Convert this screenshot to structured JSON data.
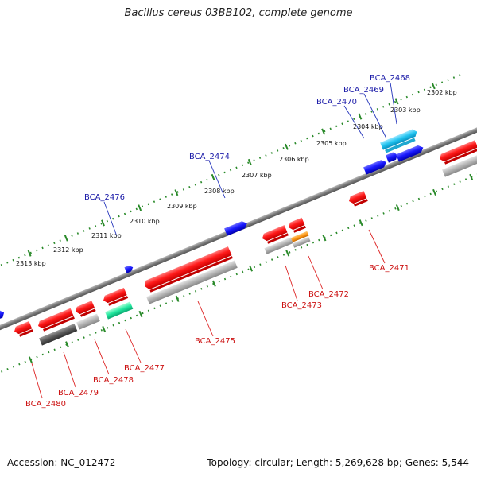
{
  "title": "Bacillus cereus 03BB102, complete genome",
  "footer": {
    "accession": "Accession: NC_012472",
    "stats": "Topology: circular; Length: 5,269,628 bp; Genes: 5,544"
  },
  "colors": {
    "backbone": "#8c8c8c",
    "tick": "#2a8a2a",
    "red": "#ff1a1a",
    "blue": "#1a1aff",
    "cyan": "#22c4f0",
    "green": "#22e8a0",
    "orange": "#ff9a1a",
    "lightgray": "#b4b4b4",
    "darkgray": "#5a5a5a"
  },
  "kbp_labels": [
    "2302 kbp",
    "2303 kbp",
    "2304 kbp",
    "2305 kbp",
    "2306 kbp",
    "2307 kbp",
    "2308 kbp",
    "2309 kbp",
    "2310 kbp",
    "2311 kbp",
    "2312 kbp",
    "2313 kbp"
  ],
  "genes_top": [
    "BCA_2468",
    "BCA_2469",
    "BCA_2470",
    "BCA_2474",
    "BCA_2476"
  ],
  "genes_bottom": [
    "BCA_2471",
    "BCA_2472",
    "BCA_2473",
    "BCA_2475",
    "BCA_2477",
    "BCA_2478",
    "BCA_2479",
    "BCA_2480"
  ]
}
